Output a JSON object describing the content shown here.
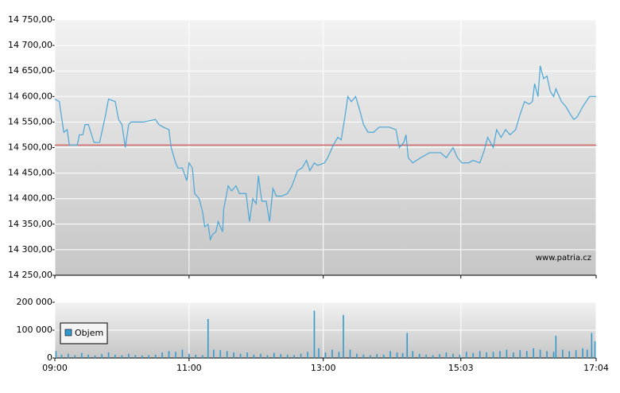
{
  "chart_data": [
    {
      "type": "line",
      "ylim": [
        14250,
        14750
      ],
      "yticks": [
        {
          "value": 14250,
          "label": "14 250,00"
        },
        {
          "value": 14300,
          "label": "14 300,00"
        },
        {
          "value": 14350,
          "label": "14 350,00"
        },
        {
          "value": 14400,
          "label": "14 400,00"
        },
        {
          "value": 14450,
          "label": "14 450,00"
        },
        {
          "value": 14500,
          "label": "14 500,00"
        },
        {
          "value": 14550,
          "label": "14 550,00"
        },
        {
          "value": 14600,
          "label": "14 600,00"
        },
        {
          "value": 14650,
          "label": "14 650,00"
        },
        {
          "value": 14700,
          "label": "14 700,00"
        },
        {
          "value": 14750,
          "label": "14 750,00"
        }
      ],
      "xlim": [
        540,
        1024
      ],
      "xticks": [
        {
          "value": 540,
          "label": "09:00"
        },
        {
          "value": 660,
          "label": "11:00"
        },
        {
          "value": 780,
          "label": "13:00"
        },
        {
          "value": 903,
          "label": "15:03"
        },
        {
          "value": 1024,
          "label": "17:04"
        }
      ],
      "grid": true,
      "reference_line": 14505,
      "reference_color": "#d04040",
      "watermark": "www.patria.cz",
      "series": [
        {
          "color": "#4aa6d6",
          "x": [
            540,
            544,
            548,
            551,
            553,
            560,
            562,
            565,
            567,
            570,
            575,
            580,
            582,
            585,
            588,
            594,
            597,
            600,
            603,
            606,
            608,
            619,
            630,
            633,
            637,
            642,
            644,
            648,
            650,
            654,
            658,
            660,
            663,
            665,
            669,
            672,
            674,
            677,
            679,
            681,
            684,
            686,
            690,
            691,
            695,
            698,
            702,
            705,
            711,
            714,
            717,
            720,
            722,
            725,
            729,
            732,
            735,
            738,
            743,
            748,
            752,
            757,
            761,
            765,
            768,
            772,
            775,
            781,
            784,
            789,
            793,
            796,
            799,
            802,
            805,
            809,
            813,
            816,
            820,
            825,
            830,
            839,
            845,
            848,
            852,
            854,
            856,
            860,
            867,
            875,
            885,
            890,
            896,
            900,
            904,
            910,
            914,
            920,
            924,
            927,
            932,
            935,
            939,
            943,
            947,
            952,
            956,
            960,
            964,
            967,
            969,
            972,
            974,
            977,
            980,
            983,
            986,
            988,
            993,
            997,
            1001,
            1004,
            1007,
            1012,
            1018,
            1024
          ],
          "values": [
            14595,
            14590,
            14530,
            14535,
            14505,
            14505,
            14525,
            14525,
            14545,
            14545,
            14510,
            14510,
            14530,
            14560,
            14595,
            14590,
            14555,
            14545,
            14500,
            14545,
            14550,
            14550,
            14555,
            14545,
            14540,
            14535,
            14500,
            14470,
            14460,
            14460,
            14435,
            14470,
            14460,
            14410,
            14400,
            14375,
            14345,
            14350,
            14320,
            14330,
            14335,
            14355,
            14335,
            14380,
            14425,
            14415,
            14425,
            14410,
            14410,
            14355,
            14400,
            14390,
            14445,
            14395,
            14395,
            14355,
            14420,
            14405,
            14405,
            14410,
            14425,
            14455,
            14460,
            14475,
            14455,
            14470,
            14465,
            14470,
            14480,
            14505,
            14520,
            14515,
            14555,
            14600,
            14590,
            14600,
            14570,
            14545,
            14530,
            14530,
            14540,
            14540,
            14535,
            14500,
            14510,
            14525,
            14480,
            14470,
            14480,
            14490,
            14490,
            14480,
            14500,
            14480,
            14470,
            14470,
            14475,
            14470,
            14495,
            14520,
            14500,
            14535,
            14520,
            14535,
            14525,
            14535,
            14565,
            14590,
            14585,
            14590,
            14625,
            14600,
            14660,
            14635,
            14640,
            14610,
            14600,
            14615,
            14590,
            14580,
            14565,
            14555,
            14560,
            14580,
            14600,
            14600
          ]
        }
      ]
    },
    {
      "type": "bar",
      "ylim": [
        0,
        200000
      ],
      "yticks": [
        0,
        {
          "value": 100000,
          "label": "100 000"
        },
        {
          "value": 200000,
          "label": "200 000"
        }
      ],
      "xlim": [
        540,
        1024
      ],
      "xticks": [
        {
          "value": 540,
          "label": "09:00"
        },
        {
          "value": 660,
          "label": "11:00"
        },
        {
          "value": 780,
          "label": "13:00"
        },
        {
          "value": 903,
          "label": "15:03"
        },
        {
          "value": 1024,
          "label": "17:04"
        }
      ],
      "grid": true,
      "legend": "top-left",
      "series": [
        {
          "name": "Objem",
          "color": "#3399cc",
          "x": [
            541,
            546,
            552,
            558,
            564,
            570,
            576,
            582,
            588,
            594,
            600,
            606,
            612,
            618,
            624,
            630,
            636,
            642,
            648,
            654,
            660,
            666,
            672,
            677,
            682,
            688,
            694,
            700,
            706,
            712,
            718,
            724,
            730,
            736,
            742,
            748,
            754,
            760,
            766,
            772,
            776,
            782,
            788,
            794,
            798,
            804,
            810,
            816,
            822,
            828,
            834,
            840,
            846,
            851,
            855,
            860,
            866,
            872,
            878,
            884,
            890,
            896,
            902,
            908,
            914,
            920,
            926,
            932,
            938,
            944,
            950,
            956,
            962,
            968,
            974,
            980,
            986,
            988,
            994,
            1000,
            1006,
            1012,
            1016,
            1020,
            1023
          ],
          "values": [
            25000,
            12000,
            15000,
            10000,
            18000,
            12000,
            9000,
            14000,
            20000,
            12000,
            10000,
            15000,
            11000,
            9000,
            10000,
            12000,
            20000,
            25000,
            22000,
            30000,
            15000,
            12000,
            10000,
            140000,
            30000,
            28000,
            25000,
            20000,
            15000,
            20000,
            12000,
            15000,
            10000,
            18000,
            14000,
            12000,
            10000,
            15000,
            22000,
            170000,
            35000,
            20000,
            30000,
            22000,
            155000,
            30000,
            15000,
            12000,
            10000,
            14000,
            12000,
            25000,
            20000,
            18000,
            90000,
            25000,
            15000,
            12000,
            10000,
            14000,
            20000,
            15000,
            12000,
            22000,
            18000,
            25000,
            20000,
            22000,
            25000,
            30000,
            20000,
            28000,
            25000,
            35000,
            30000,
            25000,
            22000,
            80000,
            30000,
            25000,
            28000,
            35000,
            30000,
            90000,
            60000
          ]
        }
      ]
    }
  ]
}
